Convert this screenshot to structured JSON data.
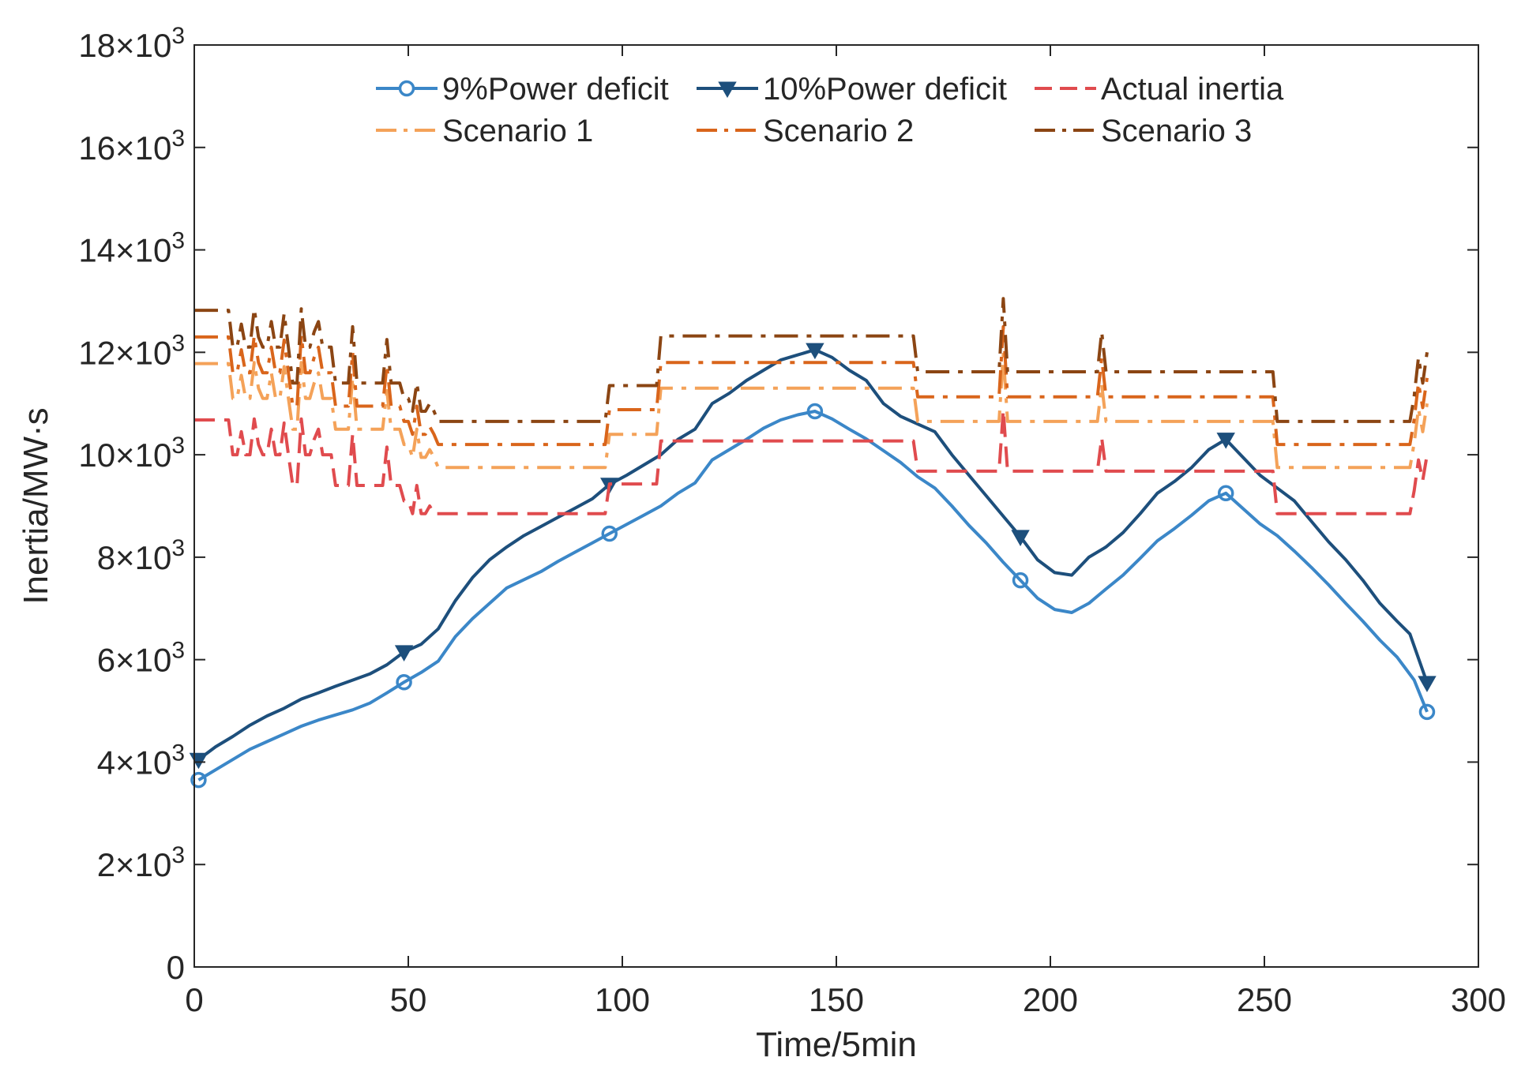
{
  "chart_data": {
    "type": "line",
    "xlabel": "Time/5min",
    "ylabel": "Inertia/MW·s",
    "xlim": [
      0,
      300
    ],
    "ylim": [
      0,
      18000
    ],
    "x_ticks": [
      0,
      50,
      100,
      150,
      200,
      250,
      300
    ],
    "x_tick_labels": [
      "0",
      "50",
      "100",
      "150",
      "200",
      "250",
      "300"
    ],
    "y_ticks": [
      0,
      2000,
      4000,
      6000,
      8000,
      10000,
      12000,
      14000,
      16000,
      18000
    ],
    "y_tick_labels": [
      {
        "base": "0",
        "exp": ""
      },
      {
        "base": "2×10",
        "exp": "3"
      },
      {
        "base": "4×10",
        "exp": "3"
      },
      {
        "base": "6×10",
        "exp": "3"
      },
      {
        "base": "8×10",
        "exp": "3"
      },
      {
        "base": "10×10",
        "exp": "3"
      },
      {
        "base": "12×10",
        "exp": "3"
      },
      {
        "base": "14×10",
        "exp": "3"
      },
      {
        "base": "16×10",
        "exp": "3"
      },
      {
        "base": "18×10",
        "exp": "3"
      }
    ],
    "grid": false,
    "legend_position": "top",
    "series": [
      {
        "name": "9%Power deficit",
        "color": "#3b87c8",
        "style": "solid",
        "marker": "circle",
        "marker_every": 12,
        "x": [
          1,
          5,
          9,
          13,
          17,
          21,
          25,
          29,
          33,
          37,
          41,
          45,
          49,
          53,
          57,
          61,
          65,
          69,
          73,
          77,
          81,
          85,
          89,
          93,
          97,
          101,
          105,
          109,
          113,
          117,
          121,
          125,
          129,
          133,
          137,
          141,
          145,
          149,
          153,
          157,
          161,
          165,
          169,
          173,
          177,
          181,
          185,
          189,
          193,
          197,
          201,
          205,
          209,
          213,
          217,
          221,
          225,
          229,
          233,
          237,
          241,
          245,
          249,
          253,
          257,
          261,
          265,
          269,
          273,
          277,
          281,
          285,
          288
        ],
        "y": [
          3650,
          3850,
          4050,
          4250,
          4400,
          4550,
          4700,
          4820,
          4920,
          5020,
          5150,
          5350,
          5560,
          5750,
          5970,
          6450,
          6800,
          7100,
          7400,
          7560,
          7720,
          7920,
          8100,
          8280,
          8460,
          8640,
          8820,
          9000,
          9250,
          9450,
          9900,
          10100,
          10300,
          10520,
          10680,
          10780,
          10850,
          10700,
          10500,
          10310,
          10080,
          9850,
          9570,
          9350,
          9000,
          8620,
          8280,
          7900,
          7550,
          7200,
          6980,
          6920,
          7100,
          7380,
          7650,
          7980,
          8320,
          8560,
          8820,
          9100,
          9250,
          8950,
          8650,
          8420,
          8120,
          7800,
          7460,
          7100,
          6750,
          6380,
          6050,
          5600,
          4980
        ]
      },
      {
        "name": "10%Power deficit",
        "color": "#1d4f7c",
        "style": "solid",
        "marker": "triangle-down",
        "marker_every": 12,
        "x": [
          1,
          5,
          9,
          13,
          17,
          21,
          25,
          29,
          33,
          37,
          41,
          45,
          49,
          53,
          57,
          61,
          65,
          69,
          73,
          77,
          81,
          85,
          89,
          93,
          97,
          101,
          105,
          109,
          113,
          117,
          121,
          125,
          129,
          133,
          137,
          141,
          145,
          149,
          153,
          157,
          161,
          165,
          169,
          173,
          177,
          181,
          185,
          189,
          193,
          197,
          201,
          205,
          209,
          213,
          217,
          221,
          225,
          229,
          233,
          237,
          241,
          245,
          249,
          253,
          257,
          261,
          265,
          269,
          273,
          277,
          281,
          284,
          288
        ],
        "y": [
          4050,
          4300,
          4500,
          4720,
          4900,
          5050,
          5230,
          5350,
          5480,
          5600,
          5720,
          5900,
          6150,
          6300,
          6600,
          7150,
          7600,
          7950,
          8200,
          8420,
          8600,
          8780,
          8960,
          9140,
          9420,
          9600,
          9800,
          10000,
          10300,
          10500,
          11000,
          11200,
          11450,
          11650,
          11850,
          11950,
          12050,
          11900,
          11650,
          11450,
          11000,
          10750,
          10600,
          10450,
          10000,
          9600,
          9200,
          8800,
          8400,
          7950,
          7700,
          7650,
          8000,
          8200,
          8480,
          8850,
          9250,
          9480,
          9750,
          10100,
          10300,
          9950,
          9600,
          9350,
          9100,
          8700,
          8300,
          7950,
          7550,
          7100,
          6750,
          6500,
          5550
        ]
      },
      {
        "name": "Actual inertia",
        "color": "#e04b4e",
        "style": "dashed",
        "marker": "",
        "x": [
          0,
          8,
          9,
          10,
          11,
          12,
          13,
          14,
          15,
          16,
          17,
          18,
          19,
          20,
          21,
          22,
          23,
          24,
          25,
          26,
          27,
          28,
          29,
          30,
          31,
          32,
          33,
          34,
          35,
          36,
          37,
          38,
          39,
          40,
          41,
          42,
          43,
          44,
          45,
          46,
          47,
          48,
          49,
          50,
          51,
          52,
          53,
          54,
          55,
          56,
          57,
          58,
          59,
          60,
          96,
          97,
          108,
          109,
          168,
          169,
          188,
          189,
          190,
          211,
          212,
          213,
          252,
          253,
          284,
          285,
          286,
          287,
          288
        ],
        "y": [
          10680,
          10680,
          10000,
          10000,
          10450,
          10000,
          10000,
          10700,
          10200,
          10000,
          10000,
          10500,
          10000,
          10000,
          10620,
          10000,
          9400,
          9400,
          10700,
          10000,
          10000,
          10300,
          10500,
          10000,
          10000,
          10000,
          9400,
          9400,
          9400,
          9400,
          10400,
          9400,
          9400,
          9400,
          9400,
          9400,
          9400,
          9400,
          10150,
          9400,
          9400,
          9400,
          9100,
          9100,
          8850,
          9400,
          8850,
          8850,
          9000,
          8850,
          8850,
          8850,
          8850,
          8850,
          8850,
          9430,
          9430,
          10270,
          10270,
          9680,
          9680,
          10870,
          9680,
          9680,
          10330,
          9680,
          9680,
          8850,
          8850,
          9300,
          9900,
          9500,
          10000
        ]
      },
      {
        "name": "Scenario 1",
        "color": "#f4a259",
        "style": "dashdot",
        "marker": "",
        "x": [
          0,
          8,
          9,
          10,
          11,
          12,
          13,
          14,
          15,
          16,
          17,
          18,
          19,
          20,
          21,
          22,
          23,
          24,
          25,
          26,
          27,
          28,
          29,
          30,
          31,
          32,
          33,
          34,
          35,
          36,
          37,
          38,
          39,
          40,
          41,
          42,
          43,
          44,
          45,
          46,
          47,
          48,
          49,
          50,
          51,
          52,
          53,
          54,
          55,
          56,
          57,
          58,
          59,
          60,
          96,
          97,
          108,
          109,
          168,
          169,
          188,
          189,
          190,
          211,
          212,
          213,
          252,
          253,
          284,
          285,
          286,
          287,
          288
        ],
        "y": [
          11780,
          11780,
          11100,
          11100,
          11550,
          11100,
          11100,
          11800,
          11300,
          11100,
          11100,
          11600,
          11100,
          11100,
          11720,
          11100,
          10500,
          10500,
          11800,
          11100,
          11100,
          11400,
          11600,
          11100,
          11100,
          11100,
          10500,
          10500,
          10500,
          10500,
          11500,
          10500,
          10500,
          10500,
          10500,
          10500,
          10500,
          10500,
          11250,
          10500,
          10500,
          10500,
          10200,
          10200,
          9950,
          10500,
          9950,
          9950,
          10100,
          9950,
          9750,
          9750,
          9750,
          9750,
          9750,
          10400,
          10400,
          11300,
          11300,
          10650,
          10650,
          11960,
          10650,
          10650,
          11370,
          10650,
          10650,
          9750,
          9750,
          10230,
          10900,
          10450,
          11000
        ]
      },
      {
        "name": "Scenario 2",
        "color": "#d9651b",
        "style": "dashdot",
        "marker": "",
        "x": [
          0,
          8,
          9,
          10,
          11,
          12,
          13,
          14,
          15,
          16,
          17,
          18,
          19,
          20,
          21,
          22,
          23,
          24,
          25,
          26,
          27,
          28,
          29,
          30,
          31,
          32,
          33,
          34,
          35,
          36,
          37,
          38,
          39,
          40,
          41,
          42,
          43,
          44,
          45,
          46,
          47,
          48,
          49,
          50,
          51,
          52,
          53,
          54,
          55,
          56,
          57,
          58,
          59,
          60,
          96,
          97,
          108,
          109,
          168,
          169,
          188,
          189,
          190,
          211,
          212,
          213,
          252,
          253,
          284,
          285,
          286,
          287,
          288
        ],
        "y": [
          12300,
          12300,
          11600,
          11600,
          12050,
          11600,
          11600,
          12320,
          11800,
          11600,
          11600,
          12100,
          11600,
          11600,
          12240,
          11600,
          10950,
          10950,
          12330,
          11600,
          11600,
          11900,
          12100,
          11600,
          11600,
          11600,
          10950,
          10950,
          10950,
          10950,
          12000,
          10950,
          10950,
          10950,
          10950,
          10950,
          10950,
          10950,
          11750,
          10950,
          10950,
          10950,
          10650,
          10650,
          10400,
          10950,
          10400,
          10400,
          10550,
          10400,
          10200,
          10200,
          10200,
          10200,
          10200,
          10880,
          10880,
          11800,
          11800,
          11130,
          11130,
          12500,
          11130,
          11130,
          11880,
          11130,
          11130,
          10200,
          10200,
          10690,
          11400,
          10920,
          11500
        ]
      },
      {
        "name": "Scenario 3",
        "color": "#8b4513",
        "style": "dashdot",
        "marker": "",
        "x": [
          0,
          8,
          9,
          10,
          11,
          12,
          13,
          14,
          15,
          16,
          17,
          18,
          19,
          20,
          21,
          22,
          23,
          24,
          25,
          26,
          27,
          28,
          29,
          30,
          31,
          32,
          33,
          34,
          35,
          36,
          37,
          38,
          39,
          40,
          41,
          42,
          43,
          44,
          45,
          46,
          47,
          48,
          49,
          50,
          51,
          52,
          53,
          54,
          55,
          56,
          57,
          58,
          59,
          60,
          96,
          97,
          108,
          109,
          168,
          169,
          188,
          189,
          190,
          211,
          212,
          213,
          252,
          253,
          284,
          285,
          286,
          287,
          288
        ],
        "y": [
          12820,
          12820,
          12100,
          12100,
          12550,
          12100,
          12100,
          12850,
          12300,
          12100,
          12100,
          12600,
          12100,
          12100,
          12760,
          12100,
          11400,
          11400,
          12850,
          12100,
          12100,
          12400,
          12600,
          12100,
          12100,
          12100,
          11400,
          11400,
          11400,
          11400,
          12500,
          11400,
          11400,
          11400,
          11400,
          11400,
          11400,
          11400,
          12250,
          11400,
          11400,
          11400,
          11100,
          11100,
          10850,
          11400,
          10850,
          10850,
          11000,
          10850,
          10650,
          10650,
          10650,
          10650,
          10650,
          11350,
          11350,
          12320,
          12320,
          11620,
          11620,
          13050,
          11620,
          11620,
          12400,
          11620,
          11620,
          10650,
          10650,
          11150,
          11900,
          11400,
          12000
        ]
      }
    ]
  }
}
